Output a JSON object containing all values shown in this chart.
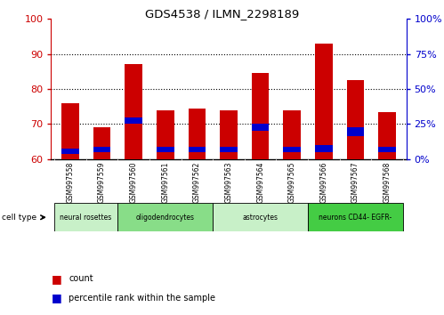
{
  "title": "GDS4538 / ILMN_2298189",
  "samples": [
    "GSM997558",
    "GSM997559",
    "GSM997560",
    "GSM997561",
    "GSM997562",
    "GSM997563",
    "GSM997564",
    "GSM997565",
    "GSM997566",
    "GSM997567",
    "GSM997568"
  ],
  "red_tops": [
    76,
    69,
    87,
    74,
    74.5,
    74,
    84.5,
    74,
    93,
    82.5,
    73.5
  ],
  "blue_heights": [
    1.5,
    1.5,
    2.0,
    1.5,
    1.5,
    1.5,
    2.0,
    1.5,
    2.0,
    2.5,
    1.5
  ],
  "blue_bottoms": [
    61.5,
    62.0,
    70.0,
    62.0,
    62.0,
    62.0,
    68.0,
    62.0,
    62.0,
    66.5,
    62.0
  ],
  "bar_bottom": 60,
  "ylim_left": [
    60,
    100
  ],
  "ylim_right": [
    0,
    100
  ],
  "yticks_left": [
    60,
    70,
    80,
    90,
    100
  ],
  "yticks_right": [
    0,
    25,
    50,
    75,
    100
  ],
  "bar_color": "#cc0000",
  "blue_color": "#0000cc",
  "bar_width": 0.55,
  "cell_types": [
    {
      "label": "neural rosettes",
      "start": 0,
      "end": 2,
      "color": "#c8f0c8"
    },
    {
      "label": "oligodendrocytes",
      "start": 2,
      "end": 5,
      "color": "#88dd88"
    },
    {
      "label": "astrocytes",
      "start": 5,
      "end": 8,
      "color": "#c8f0c8"
    },
    {
      "label": "neurons CD44- EGFR-",
      "start": 8,
      "end": 11,
      "color": "#44cc44"
    }
  ],
  "cell_type_label": "cell type",
  "legend_count": "count",
  "legend_percentile": "percentile rank within the sample",
  "grid_yticks": [
    70,
    80,
    90
  ],
  "left_tick_color": "#cc0000",
  "right_tick_color": "#0000cc",
  "gray_bg": "#d0d0d0"
}
